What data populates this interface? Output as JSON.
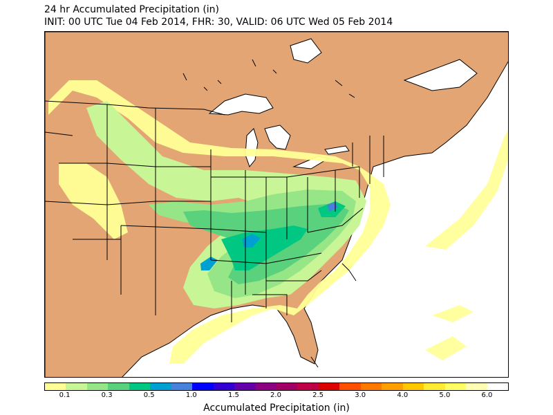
{
  "title": {
    "line1": "24 hr Accumulated Precipitation (in)",
    "line2": "INIT: 00 UTC Tue 04 Feb 2014, FHR: 30, VALID: 06 UTC Wed 05 Feb 2014"
  },
  "colorbar": {
    "label": "Accumulated Precipitation (in)",
    "colors": [
      "#ffff96",
      "#c8f596",
      "#96e687",
      "#5ad27d",
      "#00c882",
      "#00a0d2",
      "#4682dc",
      "#0000ff",
      "#3200d2",
      "#6400aa",
      "#8c0082",
      "#a00064",
      "#be0046",
      "#dc0000",
      "#ff5000",
      "#ff7800",
      "#ffa000",
      "#ffc800",
      "#ffeb32",
      "#ffff64",
      "#ffffb4",
      "#ffffff"
    ],
    "ticks": [
      "0.1",
      "0.3",
      "0.5",
      "1.0",
      "1.5",
      "2.0",
      "2.5",
      "3.0",
      "4.0",
      "5.0",
      "6.0"
    ]
  },
  "map": {
    "land_color": "#e3a574",
    "water_color": "#ffffff",
    "precip_levels": {
      "light": "#ffff96",
      "light_green": "#c8f596",
      "green": "#96e687",
      "medium_green": "#5ad27d",
      "teal": "#00c882",
      "blue": "#00a0d2"
    }
  }
}
